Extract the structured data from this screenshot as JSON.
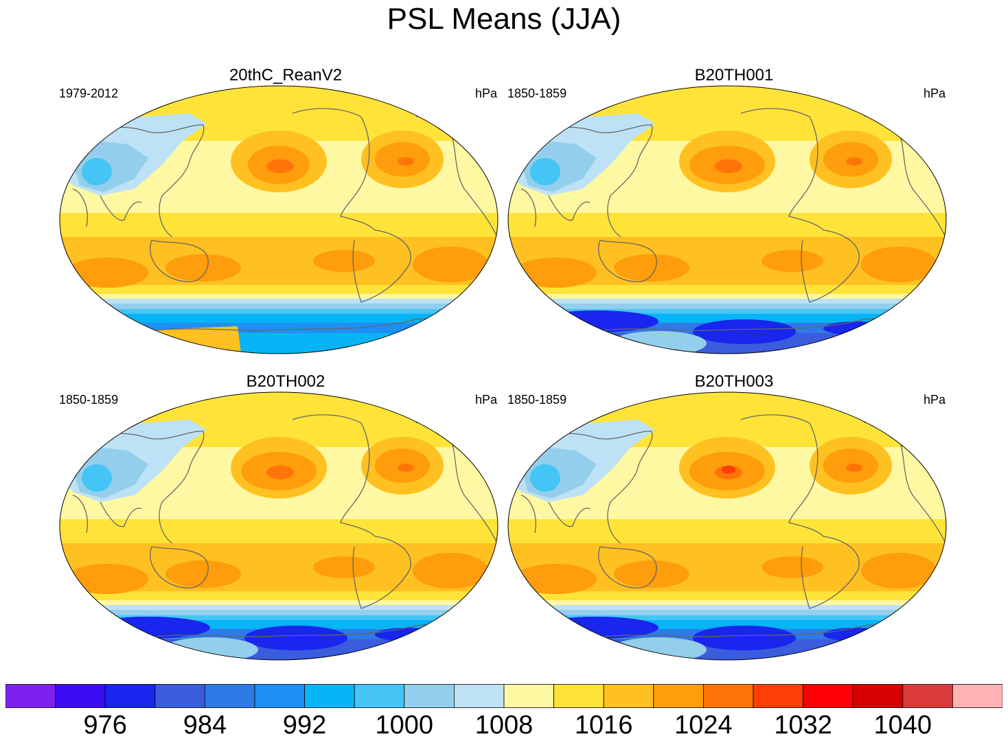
{
  "title": "PSL Means (JJA)",
  "panels": [
    {
      "title": "20thC_ReanV2",
      "period": "1979-2012",
      "units": "hPa",
      "variant": "rean"
    },
    {
      "title": "B20TH001",
      "period": "1850-1859",
      "units": "hPa",
      "variant": "model1"
    },
    {
      "title": "B20TH002",
      "period": "1850-1859",
      "units": "hPa",
      "variant": "model2"
    },
    {
      "title": "B20TH003",
      "period": "1850-1859",
      "units": "hPa",
      "variant": "model3"
    }
  ],
  "colorbar": {
    "colors": [
      "#7d22ee",
      "#3a0df5",
      "#1826ee",
      "#3a5cdd",
      "#2e7ae6",
      "#1e90f5",
      "#07b4f5",
      "#44c5f5",
      "#93cfed",
      "#bde2f5",
      "#fff8a2",
      "#ffe339",
      "#ffc022",
      "#ff9d0c",
      "#ff7408",
      "#ff3d07",
      "#ff0005",
      "#d70000",
      "#da3b3b",
      "#ffb3b3"
    ],
    "tick_labels": [
      "976",
      "984",
      "992",
      "1000",
      "1008",
      "1016",
      "1024",
      "1032",
      "1040"
    ]
  }
}
